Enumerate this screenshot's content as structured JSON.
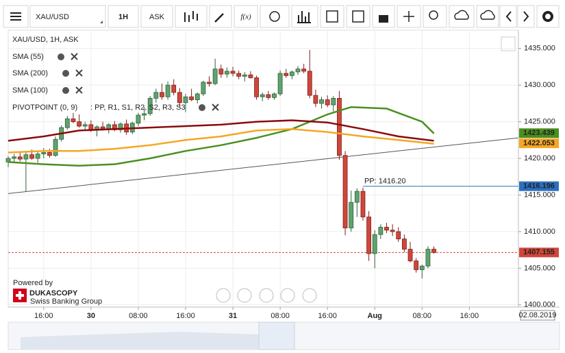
{
  "toolbar": {
    "symbol": "XAU/USD",
    "period": "1H",
    "side": "ASK",
    "function": "f(x)"
  },
  "legend": {
    "title": "XAU/USD, 1H, ASK",
    "pivot_name": "PIVOTPOINT (0, 9)",
    "pivot_lines": ": PP, R1, S1, R2, S2, R3, S3"
  },
  "branding": {
    "powered": "Powered by",
    "name": "DUKASCOPY",
    "tagline": "Swiss Banking Group"
  },
  "chart_data": {
    "type": "candlestick",
    "up_color": "#5fa36e",
    "down_color": "#d0463b",
    "xlim": [
      -14,
      72.3
    ],
    "ylim": [
      1399.7,
      1437.5
    ],
    "xticks": [
      {
        "value": -8,
        "label": "16:00"
      },
      {
        "value": 0,
        "label": "30"
      },
      {
        "value": 8,
        "label": "08:00"
      },
      {
        "value": 16,
        "label": "16:00"
      },
      {
        "value": 24,
        "label": "31"
      },
      {
        "value": 32,
        "label": "08:00"
      },
      {
        "value": 40,
        "label": "16:00"
      },
      {
        "value": 48,
        "label": "Aug"
      },
      {
        "value": 56,
        "label": "08:00"
      },
      {
        "value": 64,
        "label": "16:00"
      }
    ],
    "axis_date": "02.08.2019",
    "yticks": [
      {
        "value": 1400,
        "label": "1400.000"
      },
      {
        "value": 1405,
        "label": "1405.000"
      },
      {
        "value": 1410,
        "label": "1410.000"
      },
      {
        "value": 1415,
        "label": "1415.000"
      },
      {
        "value": 1420,
        "label": "1420.000"
      },
      {
        "value": 1425,
        "label": "1425.000"
      },
      {
        "value": 1430,
        "label": "1430.000"
      },
      {
        "value": 1435,
        "label": "1435.000"
      }
    ],
    "grid": true,
    "x": [
      -14,
      -13,
      -12,
      -11,
      -10,
      -9,
      -8,
      -7,
      -6,
      -5,
      -4,
      -3,
      -2,
      -1,
      0,
      1,
      2,
      3,
      4,
      5,
      6,
      7,
      8,
      9,
      10,
      11,
      12,
      13,
      14,
      15,
      16,
      17,
      18,
      19,
      20,
      21,
      22,
      23,
      24,
      25,
      26,
      27,
      28,
      29,
      30,
      31,
      32,
      33,
      34,
      35,
      36,
      37,
      38,
      39,
      40,
      41,
      42,
      43,
      44,
      45,
      46,
      47,
      48,
      49,
      50,
      51,
      52,
      53,
      54,
      55,
      56,
      57,
      58
    ],
    "ohlc": [
      [
        1419.5,
        1420.3,
        1418.8,
        1420.0
      ],
      [
        1420.0,
        1420.6,
        1419.5,
        1420.2
      ],
      [
        1420.2,
        1420.8,
        1419.6,
        1419.9
      ],
      [
        1419.9,
        1421.0,
        1415.5,
        1420.5
      ],
      [
        1420.5,
        1421.2,
        1419.8,
        1420.0
      ],
      [
        1420.0,
        1420.9,
        1419.4,
        1420.6
      ],
      [
        1420.6,
        1421.4,
        1420.0,
        1420.8
      ],
      [
        1420.8,
        1421.3,
        1420.1,
        1420.4
      ],
      [
        1420.4,
        1423.0,
        1420.2,
        1422.6
      ],
      [
        1422.6,
        1424.5,
        1422.3,
        1424.2
      ],
      [
        1424.2,
        1425.8,
        1423.9,
        1425.4
      ],
      [
        1425.4,
        1426.2,
        1424.8,
        1425.0
      ],
      [
        1425.0,
        1426.0,
        1424.2,
        1424.4
      ],
      [
        1424.4,
        1425.0,
        1423.8,
        1424.6
      ],
      [
        1424.6,
        1425.2,
        1423.6,
        1423.9
      ],
      [
        1423.9,
        1424.5,
        1423.0,
        1424.3
      ],
      [
        1424.3,
        1425.0,
        1423.8,
        1424.0
      ],
      [
        1424.0,
        1424.8,
        1423.4,
        1424.6
      ],
      [
        1424.6,
        1425.1,
        1423.7,
        1423.9
      ],
      [
        1423.9,
        1424.9,
        1423.5,
        1424.7
      ],
      [
        1424.7,
        1425.3,
        1423.2,
        1423.6
      ],
      [
        1423.6,
        1425.0,
        1423.3,
        1424.8
      ],
      [
        1424.8,
        1426.2,
        1424.4,
        1425.9
      ],
      [
        1425.9,
        1427.0,
        1425.2,
        1426.1
      ],
      [
        1426.1,
        1428.5,
        1425.8,
        1428.2
      ],
      [
        1428.2,
        1429.5,
        1427.6,
        1429.0
      ],
      [
        1429.0,
        1430.2,
        1428.0,
        1428.4
      ],
      [
        1428.4,
        1430.5,
        1428.0,
        1430.0
      ],
      [
        1430.0,
        1430.8,
        1428.6,
        1429.0
      ],
      [
        1429.0,
        1429.6,
        1427.0,
        1427.6
      ],
      [
        1427.6,
        1428.8,
        1426.3,
        1428.4
      ],
      [
        1428.4,
        1429.5,
        1427.8,
        1428.0
      ],
      [
        1428.0,
        1429.0,
        1427.5,
        1428.8
      ],
      [
        1428.8,
        1430.6,
        1428.5,
        1430.4
      ],
      [
        1430.4,
        1431.2,
        1429.8,
        1430.2
      ],
      [
        1430.2,
        1433.6,
        1430.0,
        1432.2
      ],
      [
        1432.2,
        1432.8,
        1431.0,
        1431.5
      ],
      [
        1431.5,
        1432.4,
        1431.0,
        1431.9
      ],
      [
        1431.9,
        1432.5,
        1431.2,
        1431.6
      ],
      [
        1431.6,
        1432.0,
        1430.8,
        1431.2
      ],
      [
        1431.2,
        1431.8,
        1430.5,
        1431.4
      ],
      [
        1431.4,
        1431.9,
        1430.9,
        1431.0
      ],
      [
        1431.0,
        1431.3,
        1428.0,
        1428.4
      ],
      [
        1428.4,
        1429.0,
        1427.8,
        1428.7
      ],
      [
        1428.7,
        1429.2,
        1428.0,
        1428.3
      ],
      [
        1428.3,
        1429.0,
        1428.0,
        1428.8
      ],
      [
        1428.8,
        1432.0,
        1428.5,
        1431.6
      ],
      [
        1431.6,
        1432.2,
        1431.0,
        1431.3
      ],
      [
        1431.3,
        1432.0,
        1430.8,
        1431.8
      ],
      [
        1431.8,
        1432.6,
        1431.4,
        1432.2
      ],
      [
        1432.2,
        1432.9,
        1431.6,
        1431.9
      ],
      [
        1431.9,
        1434.8,
        1428.2,
        1428.6
      ],
      [
        1428.6,
        1429.4,
        1427.0,
        1427.5
      ],
      [
        1427.5,
        1428.4,
        1426.8,
        1428.0
      ],
      [
        1428.0,
        1428.6,
        1427.0,
        1427.3
      ],
      [
        1427.3,
        1428.5,
        1426.4,
        1428.2
      ],
      [
        1428.2,
        1429.2,
        1419.8,
        1420.4
      ],
      [
        1420.4,
        1421.0,
        1409.5,
        1410.5
      ],
      [
        1410.5,
        1415.6,
        1410.0,
        1414.0
      ],
      [
        1414.0,
        1415.9,
        1412.0,
        1415.5
      ],
      [
        1415.5,
        1416.0,
        1411.5,
        1412.0
      ],
      [
        1412.0,
        1412.8,
        1406.0,
        1407.0
      ],
      [
        1407.0,
        1410.2,
        1405.0,
        1409.6
      ],
      [
        1409.6,
        1411.0,
        1409.0,
        1410.6
      ],
      [
        1410.6,
        1411.2,
        1409.8,
        1410.2
      ],
      [
        1410.2,
        1411.0,
        1409.4,
        1410.0
      ],
      [
        1410.0,
        1410.6,
        1408.6,
        1409.0
      ],
      [
        1409.0,
        1409.6,
        1407.2,
        1407.6
      ],
      [
        1407.6,
        1408.6,
        1405.8,
        1406.0
      ],
      [
        1406.0,
        1406.4,
        1404.4,
        1404.8
      ],
      [
        1404.8,
        1405.5,
        1403.6,
        1405.3
      ],
      [
        1405.3,
        1408.0,
        1405.0,
        1407.6
      ],
      [
        1407.6,
        1408.0,
        1407.0,
        1407.155
      ]
    ],
    "series": [
      {
        "name": "SMA (55)",
        "color": "#4a8f1e",
        "x": [
          -14,
          -8,
          -2,
          4,
          10,
          16,
          22,
          28,
          34,
          40,
          44,
          50,
          56,
          58
        ],
        "values": [
          1419.5,
          1419.2,
          1419.0,
          1419.2,
          1420.0,
          1421.0,
          1421.8,
          1422.8,
          1424.0,
          1426.0,
          1427.0,
          1426.8,
          1425.0,
          1423.4
        ]
      },
      {
        "name": "SMA (200)",
        "color": "#8b0a0a",
        "x": [
          -14,
          -8,
          -2,
          4,
          10,
          16,
          22,
          28,
          34,
          40,
          46,
          52,
          58
        ],
        "values": [
          1422.4,
          1423.0,
          1423.8,
          1424.0,
          1424.2,
          1424.4,
          1424.6,
          1425.0,
          1425.2,
          1424.9,
          1424.0,
          1423.0,
          1422.4
        ]
      },
      {
        "name": "SMA (100)",
        "color": "#f5a623",
        "x": [
          -14,
          -8,
          -2,
          4,
          10,
          16,
          22,
          28,
          34,
          40,
          46,
          52,
          58
        ],
        "values": [
          1420.8,
          1421.0,
          1421.0,
          1421.3,
          1421.8,
          1422.5,
          1423.0,
          1423.8,
          1424.0,
          1423.6,
          1423.0,
          1422.5,
          1422.0
        ]
      }
    ],
    "trendline": {
      "x": [
        -14,
        72.3
      ],
      "values": [
        1415.2,
        1422.8
      ],
      "color": "#555555"
    },
    "pivot": {
      "start": 46,
      "value": 1416.196,
      "value_label": "PP: 1416.20",
      "color": "#2d6fc0"
    },
    "price_labels": [
      {
        "value": 1423.439,
        "color": "#4a8f1e"
      },
      {
        "value": 1422.053,
        "color": "#f5a623"
      },
      {
        "value": 1416.196,
        "color": "#2d6fc0"
      },
      {
        "value": 1407.155,
        "color": "#d0463b"
      }
    ]
  }
}
